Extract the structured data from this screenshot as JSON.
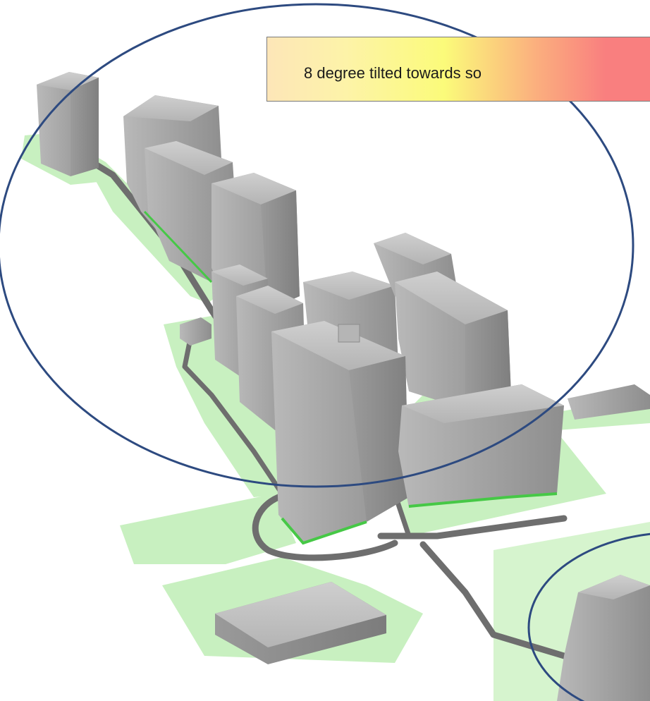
{
  "callout": {
    "text": "8 degree tilted towards so"
  },
  "colors": {
    "ground": "#c8f0c0",
    "path": "#6e6e6e",
    "building": "#9d9d9d",
    "building_highlight": "#c2c2c2",
    "building_shadow": "#7f7f7f",
    "green_base": "#46c846",
    "ellipse_stroke": "#2d4a80"
  }
}
